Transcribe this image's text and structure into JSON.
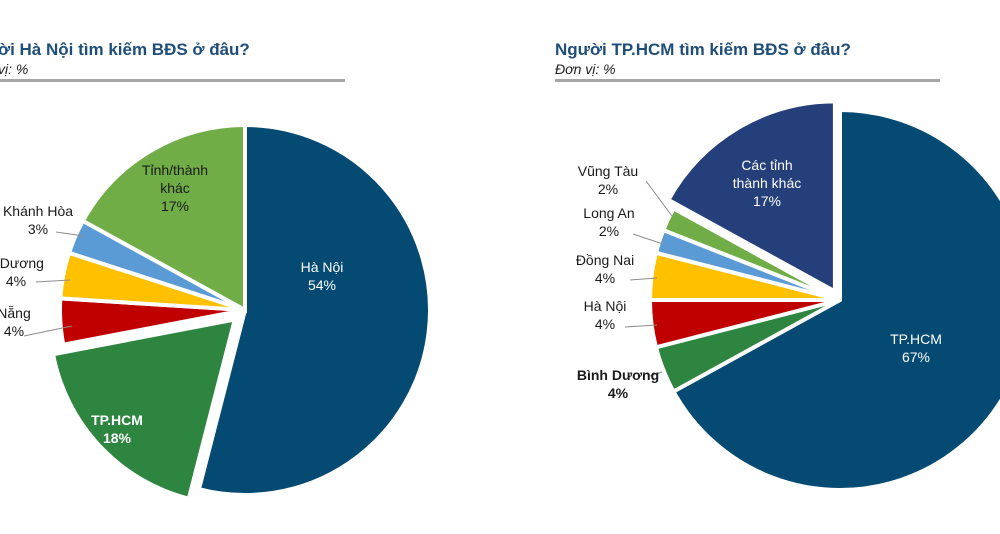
{
  "chart_data": [
    {
      "type": "pie",
      "title": "ời Hà Nội tìm kiếm BĐS ở đâu?",
      "unit_label": "vị: %",
      "slices": [
        {
          "label": "Hà Nội",
          "value": 54,
          "value_label": "54%",
          "color": "#044a73"
        },
        {
          "label": "TP.HCM",
          "value": 18,
          "value_label": "18%",
          "color": "#2e8540",
          "exploded": true
        },
        {
          "label": "Nẵng",
          "value": 4,
          "value_label": "4%",
          "color": "#c00000"
        },
        {
          "label": "h Dương",
          "value": 4,
          "value_label": "4%",
          "color": "#ffc000"
        },
        {
          "label": "Khánh Hòa",
          "value": 3,
          "value_label": "3%",
          "color": "#5b9bd5"
        },
        {
          "label": "Tỉnh/thành khác",
          "value": 17,
          "value_label": "17%",
          "color": "#70ad47"
        }
      ]
    },
    {
      "type": "pie",
      "title": "Người TP.HCM tìm kiếm BĐS ở đâu?",
      "unit_label": "Đơn vị: %",
      "slices": [
        {
          "label": "TP.HCM",
          "value": 67,
          "value_label": "67%",
          "color": "#044a73"
        },
        {
          "label": "Bình Dương",
          "value": 4,
          "value_label": "4%",
          "color": "#2e8540"
        },
        {
          "label": "Hà Nội",
          "value": 4,
          "value_label": "4%",
          "color": "#c00000"
        },
        {
          "label": "Đồng Nai",
          "value": 4,
          "value_label": "4%",
          "color": "#ffc000"
        },
        {
          "label": "Long An",
          "value": 2,
          "value_label": "2%",
          "color": "#5b9bd5"
        },
        {
          "label": "Vũng Tàu",
          "value": 2,
          "value_label": "2%",
          "color": "#70ad47"
        },
        {
          "label": "Các tỉnh thành khác",
          "value": 17,
          "value_label": "17%",
          "color": "#243f7a",
          "exploded": true
        }
      ]
    }
  ]
}
